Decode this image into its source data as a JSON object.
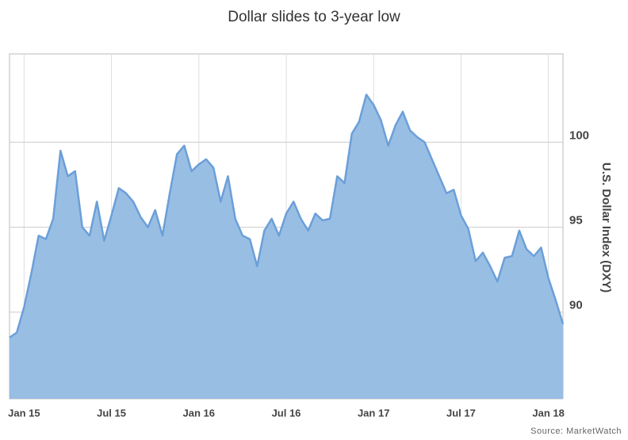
{
  "chart_data": {
    "type": "area",
    "title": "Dollar slides to 3-year low",
    "y_label": "U.S. Dollar Index (DXY)",
    "source": "Source: MarketWatch",
    "color": "#6b9fd8",
    "fill": "#93bbe3",
    "categories": [
      null,
      null,
      "Jan 15",
      null,
      null,
      null,
      null,
      null,
      null,
      null,
      null,
      null,
      null,
      null,
      "Jul 15",
      null,
      null,
      null,
      null,
      null,
      null,
      null,
      null,
      null,
      null,
      null,
      "Jan 16",
      null,
      null,
      null,
      null,
      null,
      null,
      null,
      null,
      null,
      null,
      null,
      "Jul 16",
      null,
      null,
      null,
      null,
      null,
      null,
      null,
      null,
      null,
      null,
      null,
      "Jan 17",
      null,
      null,
      null,
      null,
      null,
      null,
      null,
      null,
      null,
      null,
      null,
      "Jul 17",
      null,
      null,
      null,
      null,
      null,
      null,
      null,
      null,
      null,
      null,
      null,
      "Jan 18",
      null,
      null
    ],
    "values": [
      88.5,
      88.8,
      90.3,
      92.3,
      94.5,
      94.3,
      95.5,
      99.5,
      98.0,
      98.3,
      95.0,
      94.5,
      96.5,
      94.2,
      95.7,
      97.3,
      97.0,
      96.5,
      95.6,
      95.0,
      96.0,
      94.5,
      97.0,
      99.3,
      99.8,
      98.3,
      98.7,
      99.0,
      98.5,
      96.5,
      98.0,
      95.5,
      94.5,
      94.3,
      92.7,
      94.8,
      95.5,
      94.5,
      95.8,
      96.5,
      95.5,
      94.8,
      95.8,
      95.4,
      95.5,
      98.0,
      97.6,
      100.5,
      101.2,
      102.8,
      102.2,
      101.3,
      99.8,
      101.0,
      101.8,
      100.7,
      100.3,
      100.0,
      99.0,
      98.0,
      97.0,
      97.2,
      95.7,
      94.9,
      93.0,
      93.5,
      92.7,
      91.8,
      93.2,
      93.3,
      94.8,
      93.7,
      93.3,
      93.8,
      92.0,
      90.7,
      89.3
    ],
    "ylim": [
      84.9,
      105.2
    ],
    "yticks": [
      90,
      95,
      100
    ],
    "grid": true
  }
}
